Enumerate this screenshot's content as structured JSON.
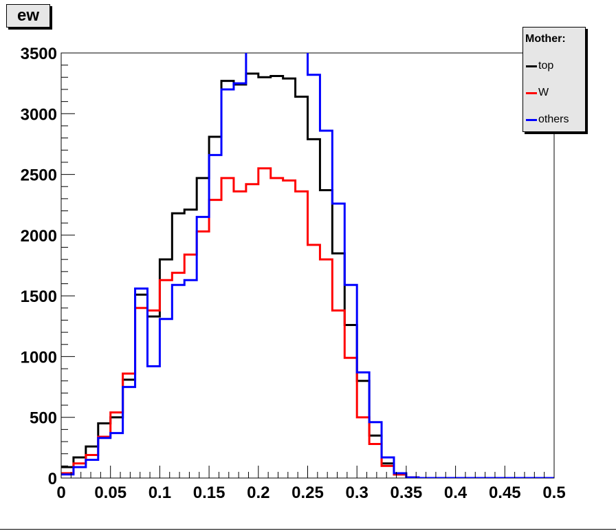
{
  "title": "ew",
  "legend": {
    "header": "Mother:",
    "position": "top-right"
  },
  "chart_data": {
    "type": "line",
    "title": "ew",
    "xlabel": "",
    "ylabel": "",
    "xlim": [
      0,
      0.5
    ],
    "ylim": [
      0,
      3500
    ],
    "grid": false,
    "x_tick_labels": [
      "0",
      "0.05",
      "0.1",
      "0.15",
      "0.2",
      "0.25",
      "0.3",
      "0.35",
      "0.4",
      "0.45",
      "0.5"
    ],
    "y_tick_labels": [
      "0",
      "500",
      "1000",
      "1500",
      "2000",
      "2500",
      "3000",
      "3500"
    ],
    "bin_edges_start": 0,
    "bin_width": 0.0125,
    "series": [
      {
        "name": "top",
        "color": "#000000",
        "values": [
          90,
          170,
          260,
          450,
          500,
          810,
          1510,
          1330,
          1800,
          2180,
          2210,
          2470,
          2810,
          3270,
          3240,
          3330,
          3300,
          3310,
          3290,
          3140,
          2790,
          2370,
          1850,
          1260,
          800,
          350,
          120,
          30,
          5,
          0,
          0,
          0,
          0,
          0,
          0,
          0,
          0,
          0,
          0,
          0
        ]
      },
      {
        "name": "W",
        "color": "#ff0000",
        "values": [
          40,
          120,
          190,
          340,
          540,
          860,
          1400,
          1380,
          1630,
          1690,
          1840,
          2030,
          2290,
          2470,
          2360,
          2420,
          2550,
          2470,
          2450,
          2360,
          1920,
          1800,
          1380,
          990,
          500,
          280,
          100,
          30,
          5,
          0,
          0,
          0,
          0,
          0,
          0,
          0,
          0,
          0,
          0,
          0
        ]
      },
      {
        "name": "others",
        "color": "#0000ff",
        "values": [
          30,
          90,
          150,
          330,
          370,
          750,
          1560,
          920,
          1310,
          1590,
          1630,
          2150,
          2660,
          3200,
          3250,
          3600,
          3600,
          3600,
          3600,
          3600,
          3320,
          2860,
          2260,
          1590,
          870,
          460,
          170,
          40,
          5,
          0,
          0,
          0,
          0,
          0,
          0,
          0,
          0,
          0,
          0,
          0
        ]
      }
    ]
  }
}
